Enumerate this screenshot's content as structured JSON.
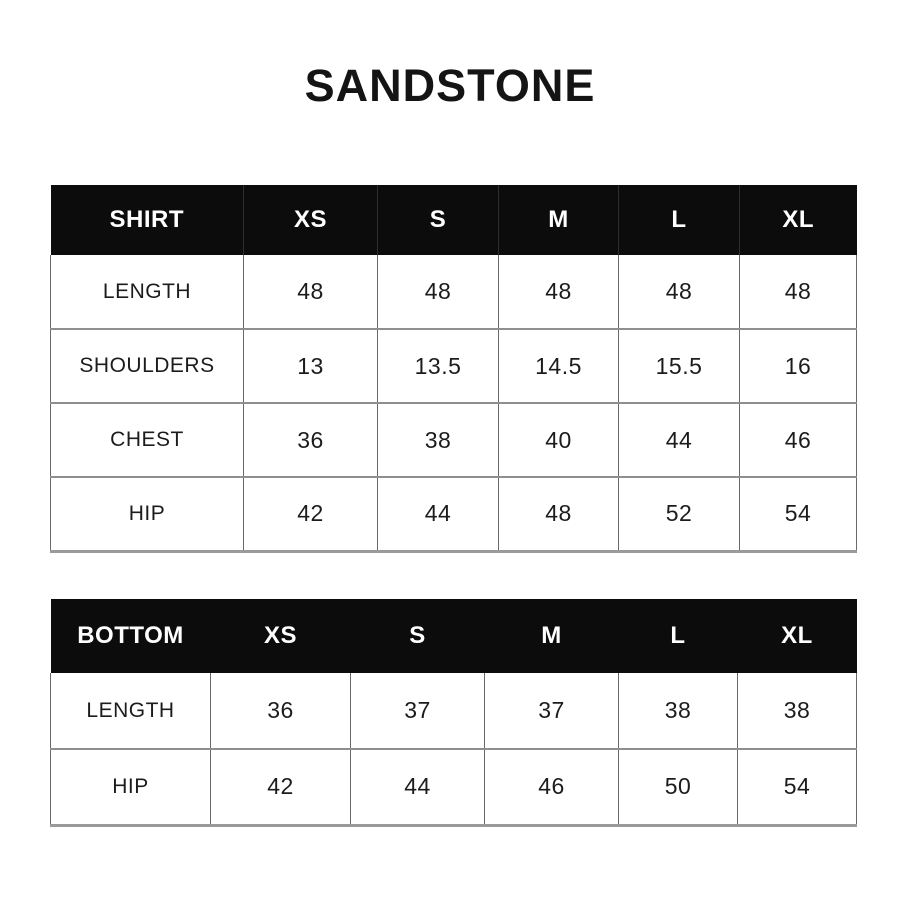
{
  "title": "SANDSTONE",
  "colors": {
    "background": "#ffffff",
    "header_bg": "#0c0c0c",
    "header_text": "#ffffff",
    "body_text": "#1c1c1c",
    "grid_border": "#6a6a6a",
    "row_divider": "#8f8f8f"
  },
  "chart_data": [
    {
      "type": "table",
      "title": "SHIRT",
      "columns": [
        "SHIRT",
        "XS",
        "S",
        "M",
        "L",
        "XL"
      ],
      "rows": [
        [
          "LENGTH",
          "48",
          "48",
          "48",
          "48",
          "48"
        ],
        [
          "SHOULDERS",
          "13",
          "13.5",
          "14.5",
          "15.5",
          "16"
        ],
        [
          "CHEST",
          "36",
          "38",
          "40",
          "44",
          "46"
        ],
        [
          "HIP",
          "42",
          "44",
          "48",
          "52",
          "54"
        ]
      ]
    },
    {
      "type": "table",
      "title": "BOTTOM",
      "columns": [
        "BOTTOM",
        "XS",
        "S",
        "M",
        "L",
        "XL"
      ],
      "rows": [
        [
          "LENGTH",
          "36",
          "37",
          "37",
          "38",
          "38"
        ],
        [
          "HIP",
          "42",
          "44",
          "46",
          "50",
          "54"
        ]
      ]
    }
  ]
}
